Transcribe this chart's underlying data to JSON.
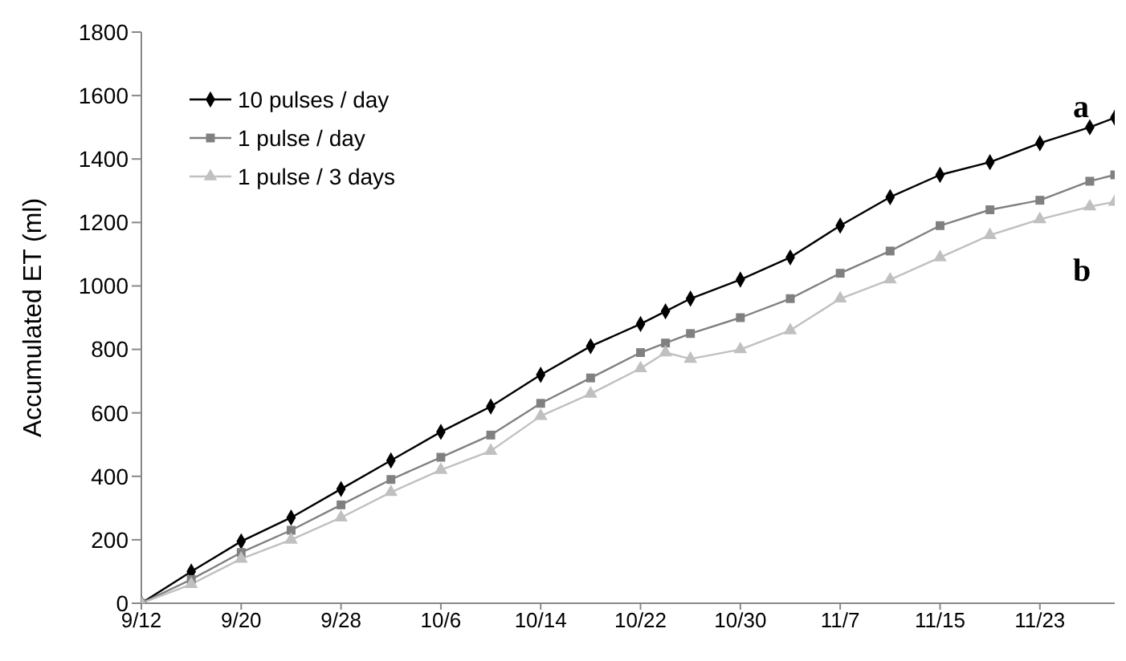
{
  "chart_data": {
    "type": "line",
    "ylabel": "Accumulated ET (ml)",
    "x": [
      "--09-12",
      "--09-16",
      "--09-20",
      "--09-24",
      "--09-28",
      "--10-02",
      "--10-06",
      "--10-10",
      "--10-14",
      "--10-18",
      "--10-22",
      "--10-24",
      "--10-26",
      "--10-30",
      "--11-03",
      "--11-07",
      "--11-11",
      "--11-15",
      "--11-19",
      "--11-23",
      "--11-27",
      "--11-29"
    ],
    "series": [
      {
        "name": "10 pulses / day",
        "color": "#000000",
        "marker": "diamond",
        "values": [
          0,
          100,
          195,
          270,
          360,
          450,
          540,
          620,
          720,
          810,
          880,
          920,
          960,
          1020,
          1090,
          1190,
          1280,
          1350,
          1390,
          1450,
          1500,
          1530
        ]
      },
      {
        "name": "1 pulse / day",
        "color": "#808080",
        "marker": "square",
        "values": [
          0,
          75,
          160,
          230,
          310,
          390,
          460,
          530,
          630,
          710,
          790,
          820,
          850,
          900,
          960,
          1040,
          1110,
          1190,
          1240,
          1270,
          1330,
          1350
        ]
      },
      {
        "name": "1 pulse / 3 days",
        "color": "#c0c0c0",
        "marker": "triangle",
        "values": [
          0,
          60,
          140,
          200,
          270,
          350,
          420,
          480,
          590,
          660,
          740,
          790,
          770,
          800,
          860,
          960,
          1020,
          1090,
          1160,
          1210,
          1250,
          1265
        ]
      }
    ],
    "xlim": [
      "--09-12",
      "--11-29"
    ],
    "xticks": [
      {
        "value": "--09-12",
        "label": "9/12"
      },
      {
        "value": "--09-20",
        "label": "9/20"
      },
      {
        "value": "--09-28",
        "label": "9/28"
      },
      {
        "value": "--10-06",
        "label": "10/6"
      },
      {
        "value": "--10-14",
        "label": "10/14"
      },
      {
        "value": "--10-22",
        "label": "10/22"
      },
      {
        "value": "--10-30",
        "label": "10/30"
      },
      {
        "value": "--11-07",
        "label": "11/7"
      },
      {
        "value": "--11-15",
        "label": "11/15"
      },
      {
        "value": "--11-23",
        "label": "11/23"
      }
    ],
    "ylim": [
      0,
      1800
    ],
    "yticks": [
      0,
      200,
      400,
      600,
      800,
      1000,
      1200,
      1400,
      1600,
      1800
    ],
    "annotations": [
      "a",
      "b"
    ],
    "grid": false,
    "legend": "top left"
  }
}
